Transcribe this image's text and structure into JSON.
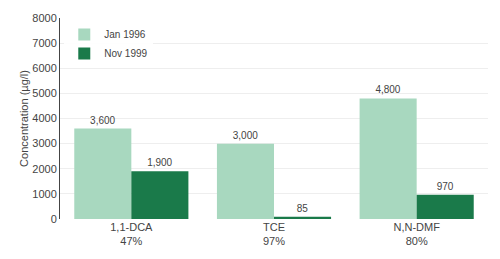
{
  "chart_data": {
    "type": "bar",
    "categories": [
      "1,1-DCA\n47%",
      "TCE\n97%",
      "N,N-DMF\n80%"
    ],
    "series": [
      {
        "name": "Jan 1996",
        "color": "#a8d8bf",
        "values": [
          3600,
          3000,
          4800
        ],
        "value_labels": [
          "3,600",
          "3,000",
          "4,800"
        ]
      },
      {
        "name": "Nov 1999",
        "color": "#1a7a4a",
        "values": [
          1900,
          85,
          970
        ],
        "value_labels": [
          "1,900",
          "85",
          "970"
        ]
      }
    ],
    "ylabel": "Concentration (µg/l)",
    "ylim": [
      0,
      8000
    ],
    "yticks": [
      0,
      1000,
      2000,
      3000,
      4000,
      5000,
      6000,
      7000,
      8000
    ],
    "grid": true,
    "legend": "upper left",
    "data_labels": true
  }
}
